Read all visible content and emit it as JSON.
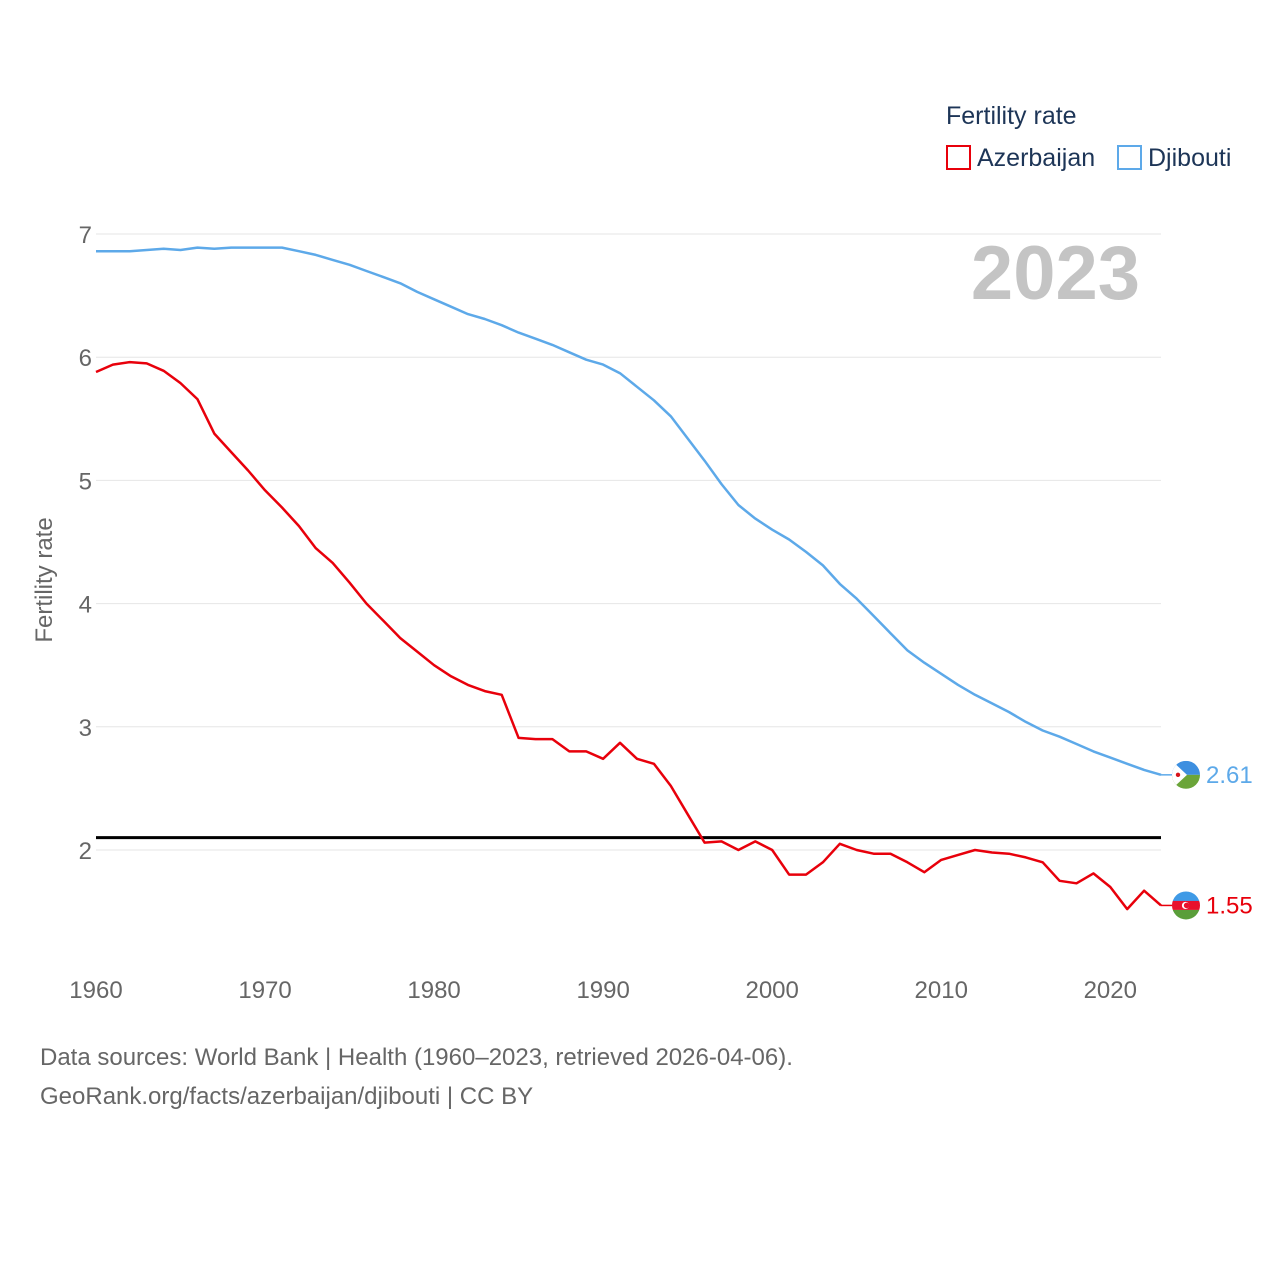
{
  "chart_data": {
    "type": "line",
    "legend_title": "Fertility rate",
    "ylabel": "Fertility rate",
    "year_label": "2023",
    "ylim": [
      1.0,
      7.0
    ],
    "xlim": [
      1960,
      2023
    ],
    "yticks": [
      2,
      3,
      4,
      5,
      6,
      7
    ],
    "xticks": [
      1960,
      1970,
      1980,
      1990,
      2000,
      2010,
      2020
    ],
    "reference_line": {
      "y": 2.1,
      "color": "#000000"
    },
    "legend_placement": "top-right",
    "x": [
      1960,
      1961,
      1962,
      1963,
      1964,
      1965,
      1966,
      1967,
      1968,
      1969,
      1970,
      1971,
      1972,
      1973,
      1974,
      1975,
      1976,
      1977,
      1978,
      1979,
      1980,
      1981,
      1982,
      1983,
      1984,
      1985,
      1986,
      1987,
      1988,
      1989,
      1990,
      1991,
      1992,
      1993,
      1994,
      1995,
      1996,
      1997,
      1998,
      1999,
      2000,
      2001,
      2002,
      2003,
      2004,
      2005,
      2006,
      2007,
      2008,
      2009,
      2010,
      2011,
      2012,
      2013,
      2014,
      2015,
      2016,
      2017,
      2018,
      2019,
      2020,
      2021,
      2022,
      2023
    ],
    "series": [
      {
        "name": "Azerbaijan",
        "color": "#e8000b",
        "end_label": "1.55",
        "flag": "azerbaijan-flag",
        "values": [
          5.88,
          5.94,
          5.96,
          5.95,
          5.89,
          5.79,
          5.66,
          5.38,
          5.23,
          5.08,
          4.92,
          4.78,
          4.63,
          4.45,
          4.33,
          4.17,
          4.0,
          3.86,
          3.72,
          3.61,
          3.5,
          3.41,
          3.34,
          3.29,
          3.26,
          2.91,
          2.9,
          2.9,
          2.8,
          2.8,
          2.74,
          2.87,
          2.74,
          2.7,
          2.52,
          2.29,
          2.06,
          2.07,
          2.0,
          2.07,
          2.0,
          1.8,
          1.8,
          1.9,
          2.05,
          2.0,
          1.97,
          1.97,
          1.9,
          1.82,
          1.92,
          1.96,
          2.0,
          1.98,
          1.97,
          1.94,
          1.9,
          1.75,
          1.73,
          1.81,
          1.7,
          1.52,
          1.67,
          1.55
        ]
      },
      {
        "name": "Djibouti",
        "color": "#5da9e9",
        "end_label": "2.61",
        "flag": "djibouti-flag",
        "values": [
          6.86,
          6.86,
          6.86,
          6.87,
          6.88,
          6.87,
          6.89,
          6.88,
          6.89,
          6.89,
          6.89,
          6.89,
          6.86,
          6.83,
          6.79,
          6.75,
          6.7,
          6.65,
          6.6,
          6.53,
          6.47,
          6.41,
          6.35,
          6.31,
          6.26,
          6.2,
          6.15,
          6.1,
          6.04,
          5.98,
          5.94,
          5.87,
          5.76,
          5.65,
          5.52,
          5.34,
          5.16,
          4.97,
          4.8,
          4.69,
          4.6,
          4.52,
          4.42,
          4.31,
          4.16,
          4.04,
          3.9,
          3.76,
          3.62,
          3.52,
          3.43,
          3.34,
          3.26,
          3.19,
          3.12,
          3.04,
          2.97,
          2.92,
          2.86,
          2.8,
          2.75,
          2.7,
          2.65,
          2.61
        ]
      }
    ]
  },
  "footer": {
    "line1": "Data sources: World Bank | Health (1960–2023, retrieved 2026-04-06).",
    "line2": "GeoRank.org/facts/azerbaijan/djibouti | CC BY"
  }
}
